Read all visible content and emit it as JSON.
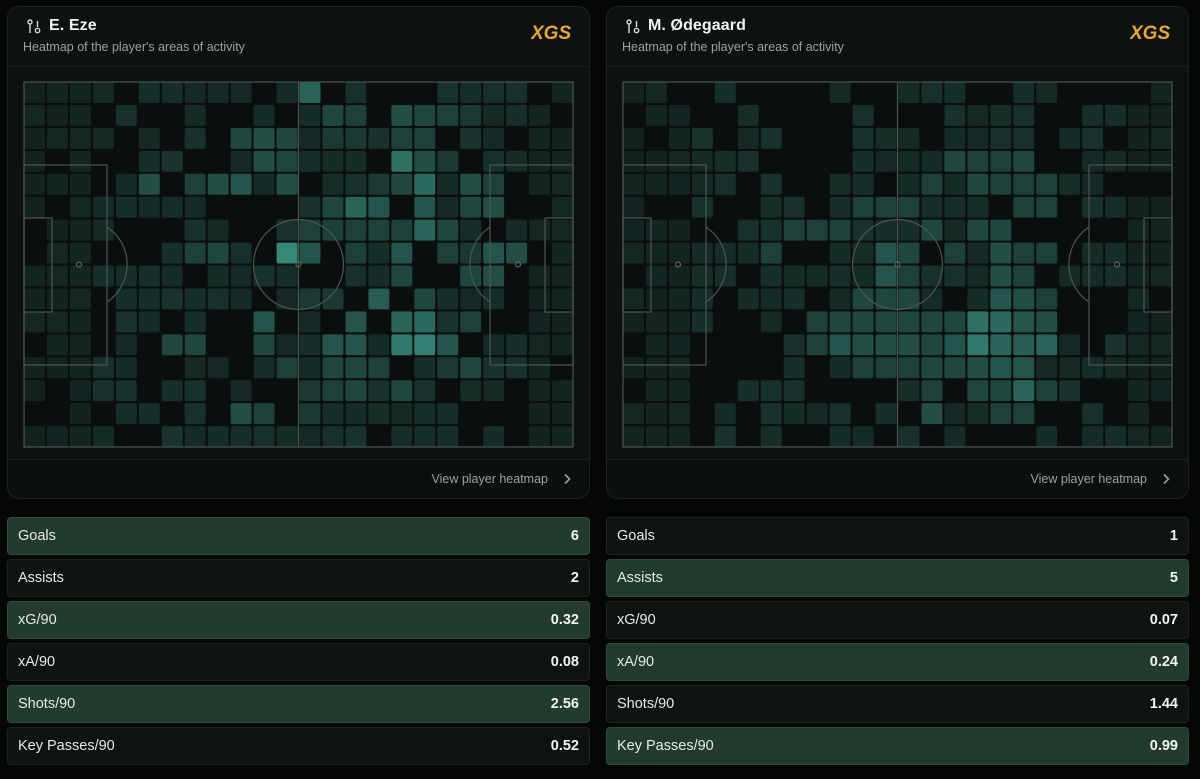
{
  "colors": {
    "background": "#050706",
    "card": "#0d1110",
    "highlight_row": "#233b2e",
    "heat_accent": "#3fa391",
    "logo_gold": "#e9a92c"
  },
  "icons": {
    "player": "player-position-icon",
    "link": "chevron-right-icon",
    "logo": "xgs-logo"
  },
  "players": [
    {
      "name": "E. Eze",
      "subtitle": "Heatmap of the player's areas of activity",
      "logo_text": "XGS",
      "footer_link": "View player heatmap",
      "heatmap": {
        "cols": 24,
        "rows": 16,
        "hot_cells": [
          [
            12,
            0,
            0.55
          ],
          [
            16,
            1,
            0.4
          ],
          [
            17,
            1,
            0.35
          ],
          [
            13,
            1,
            0.35
          ],
          [
            14,
            1,
            0.3
          ],
          [
            18,
            1,
            0.3
          ],
          [
            19,
            1,
            0.25
          ],
          [
            9,
            2,
            0.35
          ],
          [
            10,
            2,
            0.4
          ],
          [
            11,
            2,
            0.35
          ],
          [
            13,
            2,
            0.25
          ],
          [
            14,
            2,
            0.25
          ],
          [
            16,
            2,
            0.3
          ],
          [
            17,
            2,
            0.3
          ],
          [
            10,
            3,
            0.4
          ],
          [
            11,
            3,
            0.35
          ],
          [
            16,
            3,
            0.65
          ],
          [
            17,
            3,
            0.4
          ],
          [
            18,
            3,
            0.25
          ],
          [
            5,
            4,
            0.4
          ],
          [
            7,
            4,
            0.3
          ],
          [
            8,
            4,
            0.4
          ],
          [
            9,
            4,
            0.45
          ],
          [
            11,
            4,
            0.4
          ],
          [
            15,
            4,
            0.25
          ],
          [
            16,
            4,
            0.35
          ],
          [
            17,
            4,
            0.6
          ],
          [
            19,
            4,
            0.4
          ],
          [
            20,
            4,
            0.3
          ],
          [
            13,
            5,
            0.35
          ],
          [
            14,
            5,
            0.55
          ],
          [
            15,
            5,
            0.45
          ],
          [
            17,
            5,
            0.45
          ],
          [
            19,
            5,
            0.35
          ],
          [
            20,
            5,
            0.4
          ],
          [
            12,
            6,
            0.3
          ],
          [
            13,
            6,
            0.3
          ],
          [
            14,
            6,
            0.3
          ],
          [
            15,
            6,
            0.3
          ],
          [
            16,
            6,
            0.3
          ],
          [
            17,
            6,
            0.55
          ],
          [
            18,
            6,
            0.35
          ],
          [
            7,
            7,
            0.3
          ],
          [
            8,
            7,
            0.35
          ],
          [
            11,
            7,
            0.8
          ],
          [
            12,
            7,
            0.45
          ],
          [
            14,
            7,
            0.3
          ],
          [
            16,
            7,
            0.45
          ],
          [
            18,
            7,
            0.3
          ],
          [
            19,
            7,
            0.25
          ],
          [
            20,
            7,
            0.45
          ],
          [
            21,
            7,
            0.4
          ],
          [
            16,
            8,
            0.35
          ],
          [
            19,
            8,
            0.35
          ],
          [
            20,
            8,
            0.4
          ],
          [
            15,
            9,
            0.5
          ],
          [
            17,
            9,
            0.35
          ],
          [
            12,
            9,
            0.25
          ],
          [
            13,
            9,
            0.25
          ],
          [
            10,
            10,
            0.45
          ],
          [
            14,
            10,
            0.45
          ],
          [
            16,
            10,
            0.55
          ],
          [
            17,
            10,
            0.6
          ],
          [
            19,
            10,
            0.3
          ],
          [
            6,
            11,
            0.35
          ],
          [
            7,
            11,
            0.35
          ],
          [
            10,
            11,
            0.35
          ],
          [
            13,
            11,
            0.45
          ],
          [
            14,
            11,
            0.45
          ],
          [
            16,
            11,
            0.7
          ],
          [
            17,
            11,
            0.75
          ],
          [
            18,
            11,
            0.45
          ],
          [
            11,
            12,
            0.3
          ],
          [
            13,
            12,
            0.35
          ],
          [
            14,
            12,
            0.35
          ],
          [
            15,
            12,
            0.3
          ],
          [
            18,
            12,
            0.25
          ],
          [
            19,
            12,
            0.35
          ],
          [
            12,
            13,
            0.25
          ],
          [
            13,
            13,
            0.3
          ],
          [
            14,
            13,
            0.35
          ],
          [
            16,
            13,
            0.35
          ],
          [
            9,
            14,
            0.4
          ],
          [
            10,
            14,
            0.3
          ],
          [
            12,
            14,
            0.25
          ]
        ]
      },
      "stats": [
        {
          "label": "Goals",
          "value": "6",
          "highlight": true
        },
        {
          "label": "Assists",
          "value": "2",
          "highlight": false
        },
        {
          "label": "xG/90",
          "value": "0.32",
          "highlight": true
        },
        {
          "label": "xA/90",
          "value": "0.08",
          "highlight": false
        },
        {
          "label": "Shots/90",
          "value": "2.56",
          "highlight": true
        },
        {
          "label": "Key Passes/90",
          "value": "0.52",
          "highlight": false
        }
      ]
    },
    {
      "name": "M. Ødegaard",
      "subtitle": "Heatmap of the player's areas of activity",
      "logo_text": "XGS",
      "footer_link": "View player heatmap",
      "heatmap": {
        "cols": 24,
        "rows": 16,
        "hot_cells": [
          [
            15,
            3,
            0.3
          ],
          [
            16,
            3,
            0.3
          ],
          [
            14,
            3,
            0.35
          ],
          [
            17,
            3,
            0.35
          ],
          [
            13,
            4,
            0.3
          ],
          [
            15,
            4,
            0.35
          ],
          [
            16,
            4,
            0.3
          ],
          [
            17,
            4,
            0.3
          ],
          [
            18,
            4,
            0.3
          ],
          [
            10,
            5,
            0.3
          ],
          [
            11,
            5,
            0.3
          ],
          [
            12,
            5,
            0.3
          ],
          [
            17,
            5,
            0.3
          ],
          [
            18,
            5,
            0.3
          ],
          [
            7,
            6,
            0.3
          ],
          [
            8,
            6,
            0.3
          ],
          [
            9,
            6,
            0.3
          ],
          [
            13,
            6,
            0.35
          ],
          [
            15,
            6,
            0.35
          ],
          [
            16,
            6,
            0.35
          ],
          [
            6,
            7,
            0.3
          ],
          [
            11,
            7,
            0.45
          ],
          [
            12,
            7,
            0.35
          ],
          [
            14,
            7,
            0.3
          ],
          [
            16,
            7,
            0.4
          ],
          [
            17,
            7,
            0.3
          ],
          [
            18,
            7,
            0.3
          ],
          [
            11,
            8,
            0.45
          ],
          [
            12,
            8,
            0.3
          ],
          [
            16,
            8,
            0.4
          ],
          [
            17,
            8,
            0.3
          ],
          [
            10,
            9,
            0.35
          ],
          [
            11,
            9,
            0.35
          ],
          [
            12,
            9,
            0.35
          ],
          [
            16,
            9,
            0.45
          ],
          [
            17,
            9,
            0.4
          ],
          [
            18,
            9,
            0.3
          ],
          [
            8,
            10,
            0.3
          ],
          [
            9,
            10,
            0.35
          ],
          [
            10,
            10,
            0.35
          ],
          [
            11,
            10,
            0.35
          ],
          [
            12,
            10,
            0.35
          ],
          [
            13,
            10,
            0.35
          ],
          [
            14,
            10,
            0.35
          ],
          [
            15,
            10,
            0.65
          ],
          [
            16,
            10,
            0.6
          ],
          [
            17,
            10,
            0.45
          ],
          [
            18,
            10,
            0.4
          ],
          [
            8,
            11,
            0.3
          ],
          [
            9,
            11,
            0.45
          ],
          [
            10,
            11,
            0.4
          ],
          [
            11,
            11,
            0.4
          ],
          [
            12,
            11,
            0.4
          ],
          [
            13,
            11,
            0.35
          ],
          [
            14,
            11,
            0.45
          ],
          [
            15,
            11,
            0.7
          ],
          [
            16,
            11,
            0.55
          ],
          [
            17,
            11,
            0.5
          ],
          [
            18,
            11,
            0.55
          ],
          [
            10,
            12,
            0.3
          ],
          [
            11,
            12,
            0.3
          ],
          [
            12,
            12,
            0.3
          ],
          [
            13,
            12,
            0.35
          ],
          [
            14,
            12,
            0.35
          ],
          [
            15,
            12,
            0.4
          ],
          [
            16,
            12,
            0.45
          ],
          [
            17,
            12,
            0.45
          ],
          [
            13,
            13,
            0.3
          ],
          [
            15,
            13,
            0.35
          ],
          [
            16,
            13,
            0.35
          ],
          [
            17,
            13,
            0.55
          ],
          [
            18,
            13,
            0.3
          ],
          [
            13,
            14,
            0.4
          ],
          [
            16,
            14,
            0.3
          ],
          [
            17,
            14,
            0.3
          ]
        ]
      },
      "stats": [
        {
          "label": "Goals",
          "value": "1",
          "highlight": false
        },
        {
          "label": "Assists",
          "value": "5",
          "highlight": true
        },
        {
          "label": "xG/90",
          "value": "0.07",
          "highlight": false
        },
        {
          "label": "xA/90",
          "value": "0.24",
          "highlight": true
        },
        {
          "label": "Shots/90",
          "value": "1.44",
          "highlight": false
        },
        {
          "label": "Key Passes/90",
          "value": "0.99",
          "highlight": true
        }
      ]
    }
  ]
}
